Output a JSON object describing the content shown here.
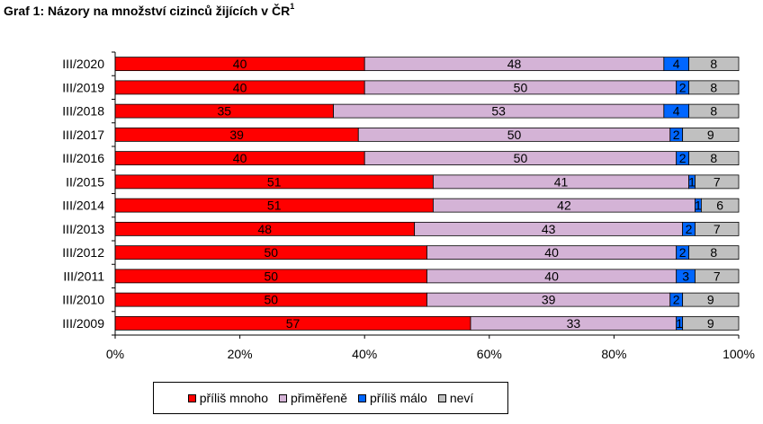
{
  "title": {
    "text": "Graf 1: Názory na množství cizinců žijících v ČR",
    "sup": "1"
  },
  "chart_data": {
    "type": "bar",
    "orientation": "horizontal",
    "stacked": "percent",
    "categories": [
      "III/2020",
      "III/2019",
      "III/2018",
      "III/2017",
      "III/2016",
      "II/2015",
      "III/2014",
      "III/2013",
      "III/2012",
      "III/2011",
      "III/2010",
      "III/2009"
    ],
    "series": [
      {
        "name": "příliš mnoho",
        "color": "#ff0000",
        "values": [
          40,
          40,
          35,
          39,
          40,
          51,
          51,
          48,
          50,
          50,
          50,
          57
        ]
      },
      {
        "name": "přiměřeně",
        "color": "#d4b3d6",
        "values": [
          48,
          50,
          53,
          50,
          50,
          41,
          42,
          43,
          40,
          40,
          39,
          33
        ]
      },
      {
        "name": "příliš málo",
        "color": "#0066ff",
        "values": [
          4,
          2,
          4,
          2,
          2,
          1,
          1,
          2,
          2,
          3,
          2,
          1
        ]
      },
      {
        "name": "neví",
        "color": "#c0c0c0",
        "values": [
          8,
          8,
          8,
          9,
          8,
          7,
          6,
          7,
          8,
          7,
          9,
          9
        ]
      }
    ],
    "xticks": [
      "0%",
      "20%",
      "40%",
      "60%",
      "80%",
      "100%"
    ],
    "xlim": [
      0,
      100
    ],
    "grid": false,
    "legend_position": "bottom"
  }
}
